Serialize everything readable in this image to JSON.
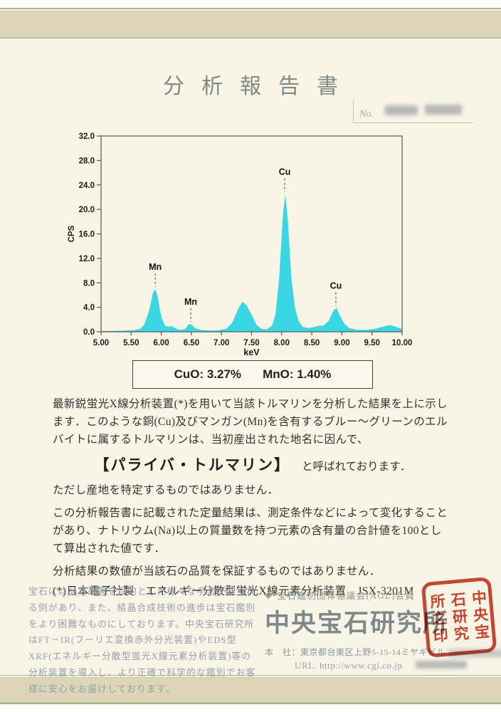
{
  "page": {
    "title": "分析報告書",
    "no_label": "No."
  },
  "chart_data": {
    "type": "area",
    "title": "",
    "xlabel": "keV",
    "ylabel": "CPS",
    "xlim": [
      5.0,
      10.0
    ],
    "ylim": [
      0.0,
      32.0
    ],
    "grid": false,
    "legend": false,
    "x_ticks": [
      "5.00",
      "5.50",
      "6.00",
      "6.50",
      "7.00",
      "7.50",
      "8.00",
      "8.50",
      "9.00",
      "9.50",
      "10.00"
    ],
    "y_ticks": [
      "0.0",
      "4.0",
      "8.0",
      "12.0",
      "16.0",
      "20.0",
      "24.0",
      "28.0",
      "32.0"
    ],
    "series_color": "#3bd6e3",
    "frame_color": "#59564e",
    "points": [
      [
        5.0,
        0.15
      ],
      [
        5.2,
        0.15
      ],
      [
        5.4,
        0.2
      ],
      [
        5.55,
        0.25
      ],
      [
        5.65,
        0.5
      ],
      [
        5.72,
        1.2
      ],
      [
        5.8,
        3.5
      ],
      [
        5.86,
        6.3
      ],
      [
        5.9,
        7.0
      ],
      [
        5.94,
        5.8
      ],
      [
        6.0,
        2.5
      ],
      [
        6.06,
        1.0
      ],
      [
        6.12,
        0.85
      ],
      [
        6.18,
        0.9
      ],
      [
        6.25,
        0.5
      ],
      [
        6.32,
        0.3
      ],
      [
        6.4,
        0.5
      ],
      [
        6.46,
        1.25
      ],
      [
        6.5,
        1.2
      ],
      [
        6.56,
        0.6
      ],
      [
        6.65,
        0.3
      ],
      [
        6.8,
        0.2
      ],
      [
        6.95,
        0.25
      ],
      [
        7.08,
        0.5
      ],
      [
        7.18,
        1.5
      ],
      [
        7.28,
        3.8
      ],
      [
        7.35,
        4.9
      ],
      [
        7.42,
        4.3
      ],
      [
        7.5,
        2.8
      ],
      [
        7.58,
        1.2
      ],
      [
        7.66,
        0.5
      ],
      [
        7.75,
        0.4
      ],
      [
        7.84,
        1.0
      ],
      [
        7.9,
        3.0
      ],
      [
        7.96,
        9.0
      ],
      [
        8.02,
        19.0
      ],
      [
        8.06,
        22.5
      ],
      [
        8.1,
        18.5
      ],
      [
        8.16,
        9.0
      ],
      [
        8.22,
        4.0
      ],
      [
        8.28,
        1.8
      ],
      [
        8.35,
        0.8
      ],
      [
        8.45,
        0.6
      ],
      [
        8.55,
        0.8
      ],
      [
        8.62,
        1.0
      ],
      [
        8.7,
        1.0
      ],
      [
        8.78,
        1.8
      ],
      [
        8.86,
        3.5
      ],
      [
        8.91,
        3.9
      ],
      [
        8.96,
        2.8
      ],
      [
        9.04,
        1.3
      ],
      [
        9.12,
        0.6
      ],
      [
        9.25,
        0.35
      ],
      [
        9.4,
        0.3
      ],
      [
        9.55,
        0.5
      ],
      [
        9.68,
        0.85
      ],
      [
        9.8,
        1.1
      ],
      [
        9.9,
        0.8
      ],
      [
        10.0,
        0.45
      ]
    ],
    "annotations": [
      {
        "label": "Mn",
        "x": 5.9,
        "y": 7.0
      },
      {
        "label": "Mn",
        "x": 6.49,
        "y": 1.3
      },
      {
        "label": "Cu",
        "x": 8.05,
        "y": 22.5
      },
      {
        "label": "Cu",
        "x": 8.9,
        "y": 3.9
      }
    ]
  },
  "result_box": {
    "cuo": "CuO: 3.27%",
    "mno": "MnO: 1.40%"
  },
  "body": {
    "p1": "最新鋭蛍光X線分析装置(*)を用いて当該トルマリンを分析した結果を上に示します．このような銅(Cu)及びマンガン(Mn)を含有するブルー～グリーンのエルバイトに属するトルマリンは、当初産出された地名に因んで、",
    "highlight": "【パライバ・トルマリン】",
    "highlight_suffix": "と呼ばれております．",
    "p2": "ただし産地を特定するものではありません．",
    "p3": "この分析報告書に記載された定量結果は、測定条件などによって変化することがあり、ナトリウム(Na)以上の質量数を持つ元素の含有量の合計値を100として算出された値です．",
    "p4": "分析結果の数値が当該石の品質を保証するものではありません．",
    "p5": "(*)日本電子社製　エネルギー分散型蛍光X線元素分析装置　JSX-3201M"
  },
  "footer": {
    "left_text": "宝石には品質改善を目的とした様々な手法が取られる例があり、また、結晶合成技術の進歩は宝石鑑別をより困難なものにしております。中央宝石研究所はFT－IR(フーリエ変換赤外分光装置)やEDS型XRF(エネルギー分散型蛍光X線元素分析装置)等の分析装置を導入し、より正確で科学的な鑑別でお客様に安心をお届けしております。",
    "member_line": "宝石鑑別団体協議会(AGL)会員",
    "diamond_icon": "◈",
    "company_name": "中央宝石研究所",
    "address_line": "本　社：東京都台東区上野5-15-14ミヤギビル",
    "url_line": "URL. http://www.cgl.co.jp",
    "seal_cols": [
      "所之印",
      "石研究",
      "中央宝"
    ],
    "seal_color": "#c53d28"
  }
}
